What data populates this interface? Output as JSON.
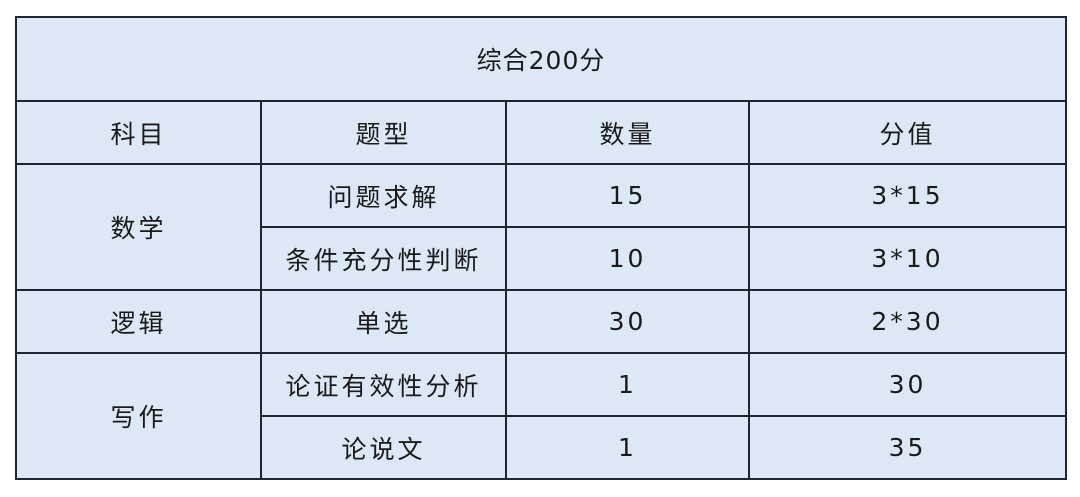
{
  "title": "综合200分",
  "headers": [
    "科目",
    "题型",
    "数量",
    "分值"
  ],
  "subjects": {
    "math": "数学",
    "logic": "逻辑",
    "writing": "写作"
  },
  "rows": [
    {
      "type": "问题求解",
      "count": "15",
      "score": "3*15"
    },
    {
      "type": "条件充分性判断",
      "count": "10",
      "score": "3*10"
    },
    {
      "type": "单选",
      "count": "30",
      "score": "2*30"
    },
    {
      "type": "论证有效性分析",
      "count": "1",
      "score": "30"
    },
    {
      "type": "论说文",
      "count": "1",
      "score": "35"
    }
  ]
}
